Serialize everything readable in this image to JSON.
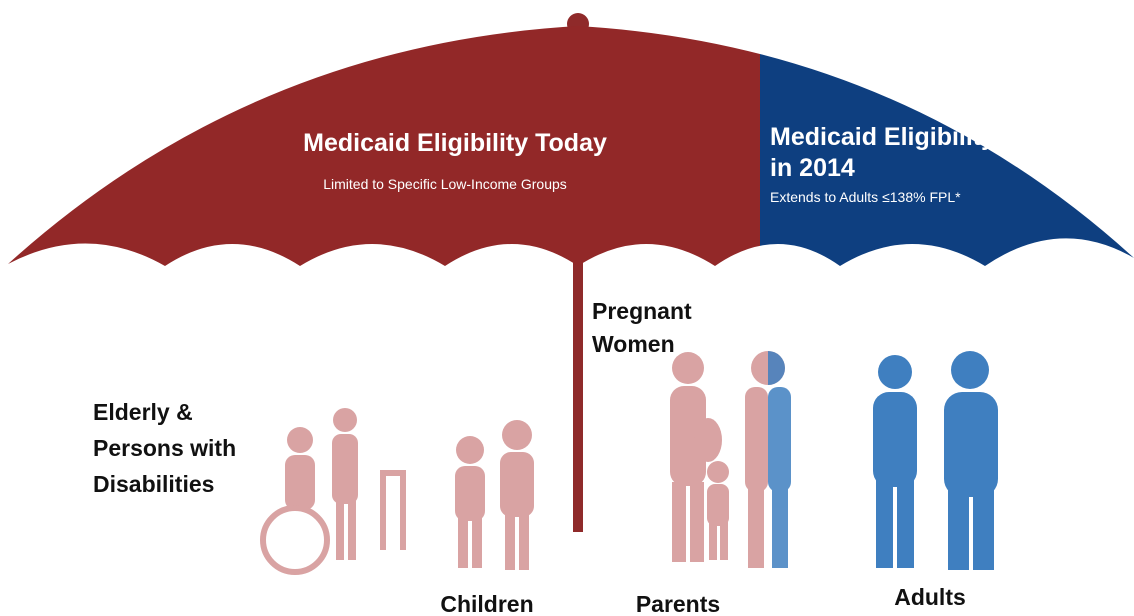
{
  "umbrella": {
    "today": {
      "title": "Medicaid Eligibility Today",
      "subtitle": "Limited to Specific Low-Income Groups"
    },
    "expansion": {
      "title_lines": [
        "Medicaid Eligibility",
        "in 2014"
      ],
      "subtitle": "Extends to Adults ≤138% FPL*"
    }
  },
  "groups": [
    {
      "label_lines": [
        "Elderly &",
        "Persons with",
        "Disabilities"
      ]
    },
    {
      "label_lines": [
        "Children"
      ]
    },
    {
      "label_lines": [
        "Pregnant",
        "Women"
      ]
    },
    {
      "label_lines": [
        "Parents"
      ]
    },
    {
      "label_lines": [
        "Adults"
      ]
    }
  ]
}
